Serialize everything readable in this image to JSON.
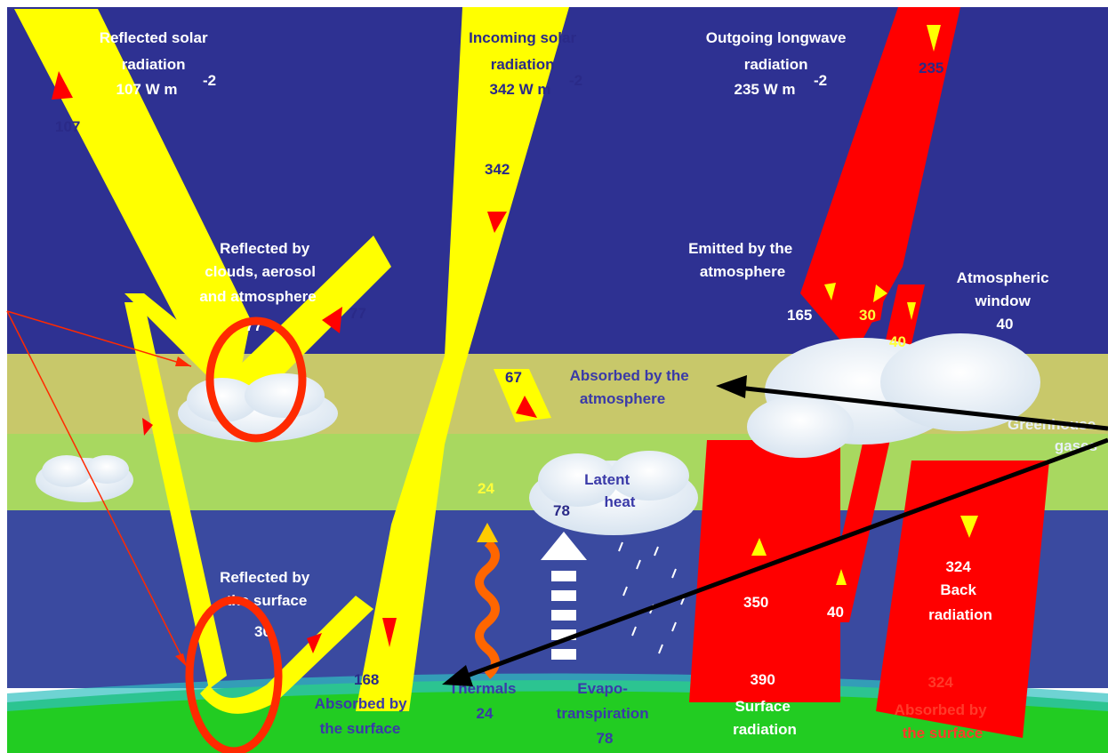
{
  "colors": {
    "sky": "#2e3192",
    "solar": "#ffff00",
    "longwave": "#ff0000",
    "atmosphere_band": "#c8c86a",
    "greenhouse_band": "#a8d860",
    "ocean": "#3a4aa0",
    "surface": "#22cc22",
    "annotation_circle": "#ff2a00",
    "annotation_arrow": "#000000"
  },
  "labels": {
    "reflected_solar": [
      "Reflected solar",
      "radiation",
      "107 W m",
      "-2"
    ],
    "incoming_solar": [
      "Incoming solar",
      "radiation",
      "342 W m",
      "-2"
    ],
    "outgoing_longwave": [
      "Outgoing longwave",
      "radiation",
      "235 W m",
      "-2"
    ],
    "reflected_clouds": [
      "Reflected by",
      "clouds, aerosol",
      "and atmosphere"
    ],
    "emitted_atmosphere": [
      "Emitted by the",
      "atmosphere"
    ],
    "atmospheric_window": [
      "Atmospheric",
      "window",
      "40"
    ],
    "absorbed_atmosphere": [
      "Absorbed by the",
      "atmosphere"
    ],
    "greenhouse": [
      "Greenhouse",
      "gases"
    ],
    "latent_heat": [
      "Latent",
      "heat"
    ],
    "reflected_surface": [
      "Reflected by",
      "the surface"
    ],
    "back_radiation": [
      "324",
      "Back",
      "radiation"
    ],
    "absorbed_surface_left": [
      "Absorbed by",
      "the surface"
    ],
    "thermals": [
      "Thermals",
      "24"
    ],
    "evapo": [
      "Evapo-",
      "transpiration",
      "78"
    ],
    "surface_radiation": [
      "390",
      "Surface",
      "radiation"
    ],
    "absorbed_surface_right": [
      "324",
      "Absorbed by",
      "the surface"
    ]
  },
  "values": {
    "v107": "107",
    "v342": "342",
    "v235": "235",
    "v77a": "77",
    "v77b": "77",
    "v165": "165",
    "v30": "30",
    "v40a": "40",
    "v67": "67",
    "v24": "24",
    "v78": "78",
    "v30s": "30",
    "v168": "168",
    "v350": "350",
    "v40b": "40"
  }
}
